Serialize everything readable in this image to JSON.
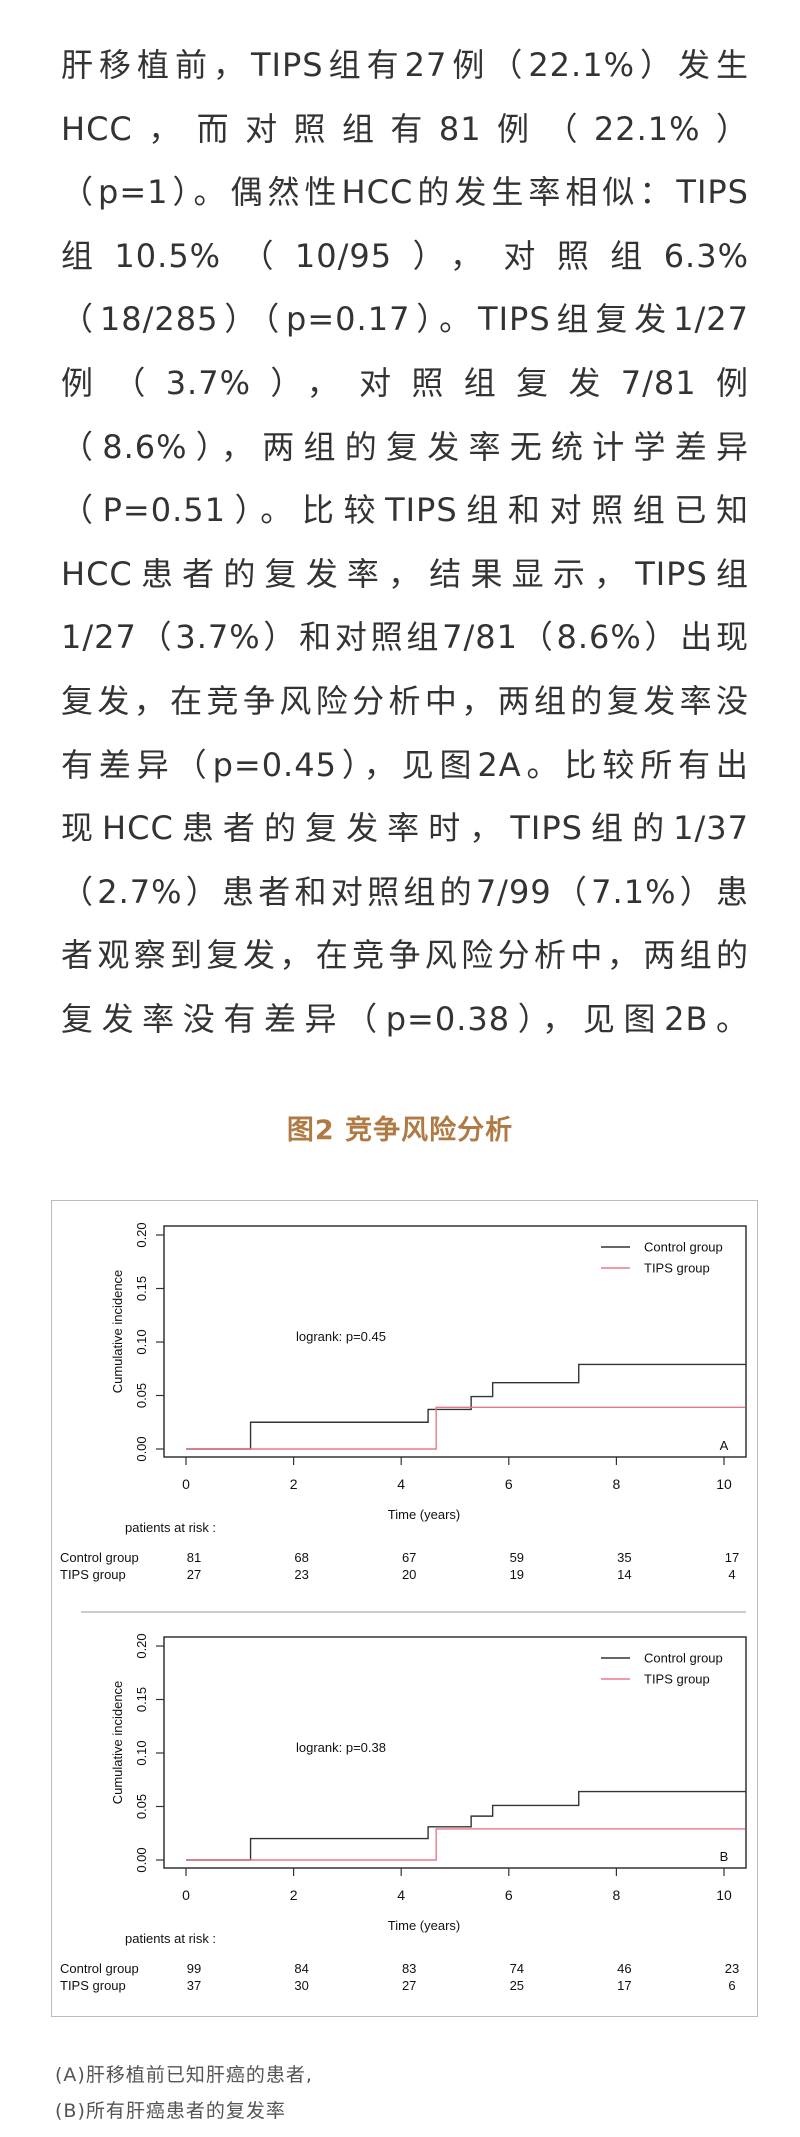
{
  "article": {
    "paragraph_lines": [
      "肝移植前，TIPS组有27例（22.1%）发生",
      "HCC，而对照组有81例（22.1%）",
      "（p=1）。偶然性HCC的发生率相似：TIPS",
      "组10.5%（10/95），对照组6.3%",
      "（18/285）（p=0.17）。TIPS组复发1/27",
      "例（3.7%），对照组复发7/81例",
      "（8.6%），两组的复发率无统计学差异",
      "（P=0.51）。比较TIPS组和对照组已知",
      "HCC患者的复发率，结果显示，TIPS组",
      "1/27（3.7%）和对照组7/81（8.6%）出现",
      "复发，在竞争风险分析中，两组的复发率没",
      "有差异（p=0.45），见图2A。比较所有出",
      "现HCC患者的复发率时，TIPS组的1/37",
      "（2.7%）患者和对照组的7/99（7.1%）患",
      "者观察到复发，在竞争风险分析中，两组的",
      "复发率没有差异（p=0.38），见图2B。"
    ]
  },
  "figure": {
    "title": "图2 竞争风险分析",
    "title_color": "#b07a45",
    "captions": [
      "(A)肝移植前已知肝癌的患者,",
      "(B)所有肝癌患者的复发率"
    ]
  },
  "chart_data": [
    {
      "type": "line",
      "step": true,
      "panel_label": "A",
      "xlabel": "Time (years)",
      "ylabel": "Cumulative incidence",
      "xlim": [
        0,
        10
      ],
      "ylim": [
        0,
        0.2
      ],
      "xticks": [
        "0",
        "2",
        "4",
        "6",
        "8",
        "10"
      ],
      "yticks": [
        "0.00",
        "0.05",
        "0.10",
        "0.15",
        "0.20"
      ],
      "annotation": "logrank: p=0.45",
      "legend_position": "top-right",
      "series": [
        {
          "name": "Control group",
          "color": "#333333",
          "x": [
            0,
            1.2,
            4.5,
            5.3,
            5.7,
            7.3,
            10.4
          ],
          "y": [
            0,
            0.025,
            0.037,
            0.049,
            0.062,
            0.079,
            0.079
          ]
        },
        {
          "name": "TIPS group",
          "color": "#e8788a",
          "x": [
            0,
            4.65,
            10.4
          ],
          "y": [
            0,
            0.039,
            0.039
          ]
        }
      ],
      "risk_table": {
        "title": "patients at risk :",
        "rows": [
          {
            "label": "Control group",
            "values": [
              "81",
              "68",
              "67",
              "59",
              "35",
              "17"
            ]
          },
          {
            "label": "TIPS group",
            "values": [
              "27",
              "23",
              "20",
              "19",
              "14",
              "4"
            ]
          }
        ]
      }
    },
    {
      "type": "line",
      "step": true,
      "panel_label": "B",
      "xlabel": "Time (years)",
      "ylabel": "Cumulative incidence",
      "xlim": [
        0,
        10
      ],
      "ylim": [
        0,
        0.2
      ],
      "xticks": [
        "0",
        "2",
        "4",
        "6",
        "8",
        "10"
      ],
      "yticks": [
        "0.00",
        "0.05",
        "0.10",
        "0.15",
        "0.20"
      ],
      "annotation": "logrank: p=0.38",
      "legend_position": "top-right",
      "series": [
        {
          "name": "Control group",
          "color": "#333333",
          "x": [
            0,
            1.2,
            4.5,
            5.3,
            5.7,
            7.3,
            10.4
          ],
          "y": [
            0,
            0.02,
            0.031,
            0.041,
            0.051,
            0.064,
            0.064
          ]
        },
        {
          "name": "TIPS group",
          "color": "#e8788a",
          "x": [
            0,
            4.65,
            10.4
          ],
          "y": [
            0,
            0.029,
            0.029
          ]
        }
      ],
      "risk_table": {
        "title": "patients at risk :",
        "rows": [
          {
            "label": "Control group",
            "values": [
              "99",
              "84",
              "83",
              "74",
              "46",
              "23"
            ]
          },
          {
            "label": "TIPS group",
            "values": [
              "37",
              "30",
              "27",
              "25",
              "17",
              "6"
            ]
          }
        ]
      }
    }
  ]
}
